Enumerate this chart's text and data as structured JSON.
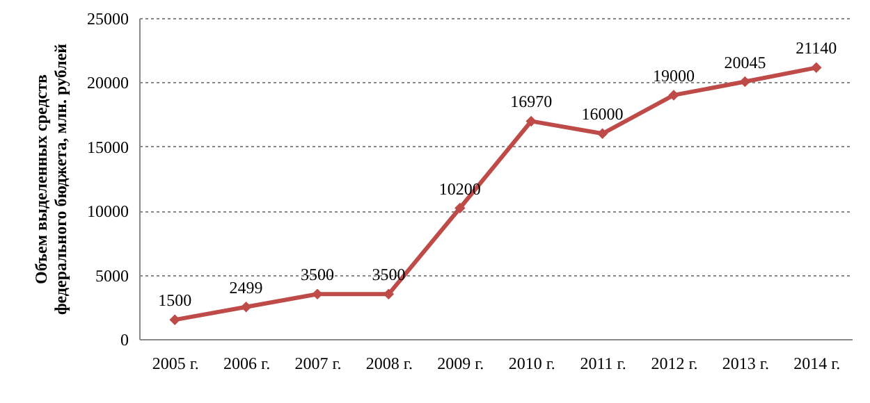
{
  "chart_data": {
    "type": "line",
    "ylabel": "Объем выделенных средств\nфедерального бюджета, млн. рублей",
    "categories": [
      "2005 г.",
      "2006 г.",
      "2007 г.",
      "2008 г.",
      "2009 г.",
      "2010 г.",
      "2011 г.",
      "2012 г.",
      "2013 г.",
      "2014 г."
    ],
    "values": [
      1500,
      2499,
      3500,
      3500,
      10200,
      16970,
      16000,
      19000,
      20045,
      21140
    ],
    "color": "#be4b48",
    "ylim": [
      0,
      25000
    ],
    "yticks": [
      0,
      5000,
      10000,
      15000,
      20000,
      25000
    ],
    "grid": "y",
    "marker": "diamond",
    "line_style": "solid",
    "data_labels": true
  }
}
